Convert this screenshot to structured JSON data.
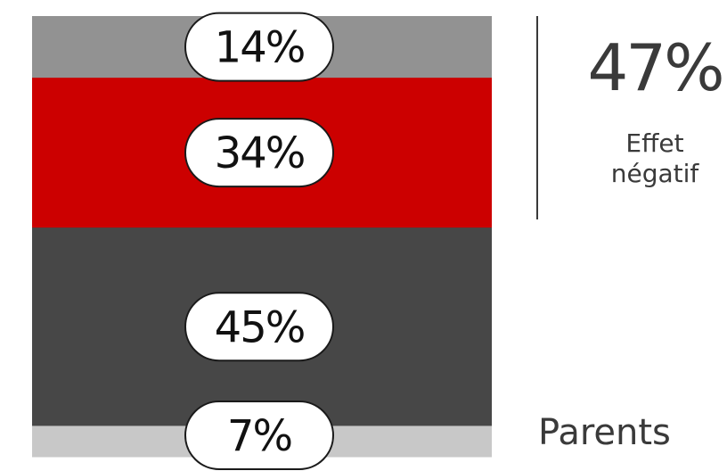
{
  "chart_data": {
    "type": "bar",
    "stacked": true,
    "categories": [
      "Parents"
    ],
    "series": [
      {
        "values": [
          14
        ],
        "label": "14%",
        "color": "#929292"
      },
      {
        "values": [
          34
        ],
        "label": "34%",
        "color": "#cc0000"
      },
      {
        "values": [
          45
        ],
        "label": "45%",
        "color": "#474747"
      },
      {
        "values": [
          7
        ],
        "label": "7%",
        "color": "#c8c8c8"
      }
    ],
    "ylim": [
      0,
      100
    ],
    "annotation": {
      "value": "47%",
      "label": "Effet\nnégatif",
      "spans_series": [
        0,
        1
      ]
    }
  }
}
